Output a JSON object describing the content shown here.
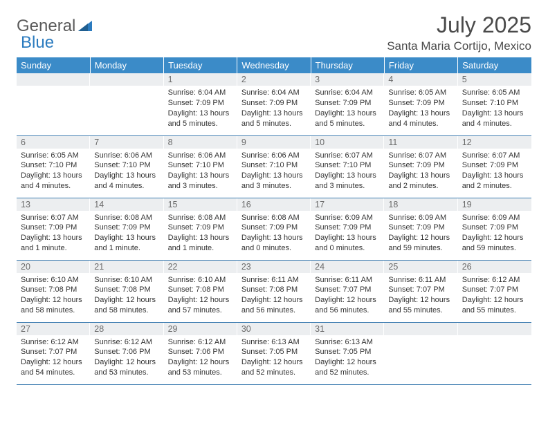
{
  "brand": {
    "part1": "General",
    "part2": "Blue"
  },
  "title": "July 2025",
  "location": "Santa Maria Cortijo, Mexico",
  "colors": {
    "header_bg": "#3b8bc8",
    "header_text": "#ffffff",
    "daynum_bg": "#eceef0",
    "row_border": "#3b7bb0",
    "brand_gray": "#5a5a5a",
    "brand_blue": "#2b7bbf"
  },
  "font": {
    "family": "Arial",
    "title_size_pt": 24,
    "body_size_pt": 8
  },
  "weekdays": [
    "Sunday",
    "Monday",
    "Tuesday",
    "Wednesday",
    "Thursday",
    "Friday",
    "Saturday"
  ],
  "weeks": [
    [
      {
        "n": "",
        "sr": "",
        "ss": "",
        "dl": ""
      },
      {
        "n": "",
        "sr": "",
        "ss": "",
        "dl": ""
      },
      {
        "n": "1",
        "sr": "Sunrise: 6:04 AM",
        "ss": "Sunset: 7:09 PM",
        "dl": "Daylight: 13 hours and 5 minutes."
      },
      {
        "n": "2",
        "sr": "Sunrise: 6:04 AM",
        "ss": "Sunset: 7:09 PM",
        "dl": "Daylight: 13 hours and 5 minutes."
      },
      {
        "n": "3",
        "sr": "Sunrise: 6:04 AM",
        "ss": "Sunset: 7:09 PM",
        "dl": "Daylight: 13 hours and 5 minutes."
      },
      {
        "n": "4",
        "sr": "Sunrise: 6:05 AM",
        "ss": "Sunset: 7:09 PM",
        "dl": "Daylight: 13 hours and 4 minutes."
      },
      {
        "n": "5",
        "sr": "Sunrise: 6:05 AM",
        "ss": "Sunset: 7:10 PM",
        "dl": "Daylight: 13 hours and 4 minutes."
      }
    ],
    [
      {
        "n": "6",
        "sr": "Sunrise: 6:05 AM",
        "ss": "Sunset: 7:10 PM",
        "dl": "Daylight: 13 hours and 4 minutes."
      },
      {
        "n": "7",
        "sr": "Sunrise: 6:06 AM",
        "ss": "Sunset: 7:10 PM",
        "dl": "Daylight: 13 hours and 4 minutes."
      },
      {
        "n": "8",
        "sr": "Sunrise: 6:06 AM",
        "ss": "Sunset: 7:10 PM",
        "dl": "Daylight: 13 hours and 3 minutes."
      },
      {
        "n": "9",
        "sr": "Sunrise: 6:06 AM",
        "ss": "Sunset: 7:10 PM",
        "dl": "Daylight: 13 hours and 3 minutes."
      },
      {
        "n": "10",
        "sr": "Sunrise: 6:07 AM",
        "ss": "Sunset: 7:10 PM",
        "dl": "Daylight: 13 hours and 3 minutes."
      },
      {
        "n": "11",
        "sr": "Sunrise: 6:07 AM",
        "ss": "Sunset: 7:09 PM",
        "dl": "Daylight: 13 hours and 2 minutes."
      },
      {
        "n": "12",
        "sr": "Sunrise: 6:07 AM",
        "ss": "Sunset: 7:09 PM",
        "dl": "Daylight: 13 hours and 2 minutes."
      }
    ],
    [
      {
        "n": "13",
        "sr": "Sunrise: 6:07 AM",
        "ss": "Sunset: 7:09 PM",
        "dl": "Daylight: 13 hours and 1 minute."
      },
      {
        "n": "14",
        "sr": "Sunrise: 6:08 AM",
        "ss": "Sunset: 7:09 PM",
        "dl": "Daylight: 13 hours and 1 minute."
      },
      {
        "n": "15",
        "sr": "Sunrise: 6:08 AM",
        "ss": "Sunset: 7:09 PM",
        "dl": "Daylight: 13 hours and 1 minute."
      },
      {
        "n": "16",
        "sr": "Sunrise: 6:08 AM",
        "ss": "Sunset: 7:09 PM",
        "dl": "Daylight: 13 hours and 0 minutes."
      },
      {
        "n": "17",
        "sr": "Sunrise: 6:09 AM",
        "ss": "Sunset: 7:09 PM",
        "dl": "Daylight: 13 hours and 0 minutes."
      },
      {
        "n": "18",
        "sr": "Sunrise: 6:09 AM",
        "ss": "Sunset: 7:09 PM",
        "dl": "Daylight: 12 hours and 59 minutes."
      },
      {
        "n": "19",
        "sr": "Sunrise: 6:09 AM",
        "ss": "Sunset: 7:09 PM",
        "dl": "Daylight: 12 hours and 59 minutes."
      }
    ],
    [
      {
        "n": "20",
        "sr": "Sunrise: 6:10 AM",
        "ss": "Sunset: 7:08 PM",
        "dl": "Daylight: 12 hours and 58 minutes."
      },
      {
        "n": "21",
        "sr": "Sunrise: 6:10 AM",
        "ss": "Sunset: 7:08 PM",
        "dl": "Daylight: 12 hours and 58 minutes."
      },
      {
        "n": "22",
        "sr": "Sunrise: 6:10 AM",
        "ss": "Sunset: 7:08 PM",
        "dl": "Daylight: 12 hours and 57 minutes."
      },
      {
        "n": "23",
        "sr": "Sunrise: 6:11 AM",
        "ss": "Sunset: 7:08 PM",
        "dl": "Daylight: 12 hours and 56 minutes."
      },
      {
        "n": "24",
        "sr": "Sunrise: 6:11 AM",
        "ss": "Sunset: 7:07 PM",
        "dl": "Daylight: 12 hours and 56 minutes."
      },
      {
        "n": "25",
        "sr": "Sunrise: 6:11 AM",
        "ss": "Sunset: 7:07 PM",
        "dl": "Daylight: 12 hours and 55 minutes."
      },
      {
        "n": "26",
        "sr": "Sunrise: 6:12 AM",
        "ss": "Sunset: 7:07 PM",
        "dl": "Daylight: 12 hours and 55 minutes."
      }
    ],
    [
      {
        "n": "27",
        "sr": "Sunrise: 6:12 AM",
        "ss": "Sunset: 7:07 PM",
        "dl": "Daylight: 12 hours and 54 minutes."
      },
      {
        "n": "28",
        "sr": "Sunrise: 6:12 AM",
        "ss": "Sunset: 7:06 PM",
        "dl": "Daylight: 12 hours and 53 minutes."
      },
      {
        "n": "29",
        "sr": "Sunrise: 6:12 AM",
        "ss": "Sunset: 7:06 PM",
        "dl": "Daylight: 12 hours and 53 minutes."
      },
      {
        "n": "30",
        "sr": "Sunrise: 6:13 AM",
        "ss": "Sunset: 7:05 PM",
        "dl": "Daylight: 12 hours and 52 minutes."
      },
      {
        "n": "31",
        "sr": "Sunrise: 6:13 AM",
        "ss": "Sunset: 7:05 PM",
        "dl": "Daylight: 12 hours and 52 minutes."
      },
      {
        "n": "",
        "sr": "",
        "ss": "",
        "dl": ""
      },
      {
        "n": "",
        "sr": "",
        "ss": "",
        "dl": ""
      }
    ]
  ]
}
